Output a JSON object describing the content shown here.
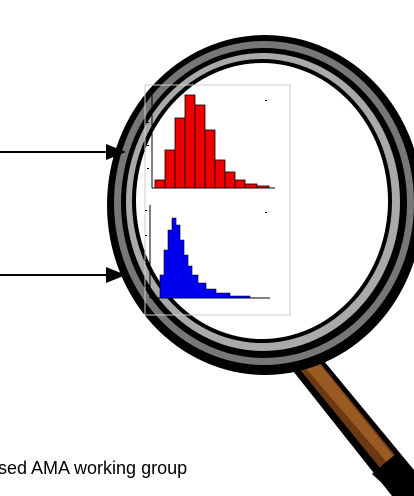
{
  "caption": "sed AMA working group"
}
